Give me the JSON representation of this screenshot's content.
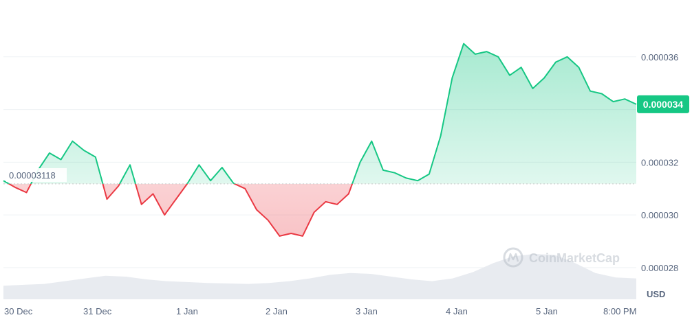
{
  "watermark": {
    "brand": "CoinMarketCap",
    "icon": "coinmarketcap-logo"
  },
  "currency_label": "USD",
  "colors": {
    "up": "#16c784",
    "down": "#ea3943",
    "current_price_bg": "#16c784",
    "baseline": "#c7c7c7",
    "grid": "#eff2f5",
    "axis_text": "#58667e",
    "volume": "#e8ebf0"
  },
  "chart_data": {
    "type": "area",
    "currency": "USD",
    "baseline_label": "0.00003118",
    "baseline_value": 3.118e-05,
    "current_price_label": "0.000034",
    "current_price_value": 3.42e-05,
    "ylim": [
      2.68e-05,
      3.8e-05
    ],
    "y_ticks": [
      {
        "value": 3.6e-05,
        "label": "0.000036"
      },
      {
        "value": 3.4e-05,
        "label": "0.000034"
      },
      {
        "value": 3.2e-05,
        "label": "0.000032"
      },
      {
        "value": 3e-05,
        "label": "0.000030"
      },
      {
        "value": 2.8e-05,
        "label": "0.000028"
      }
    ],
    "x_ticks": [
      "30 Dec",
      "31 Dec",
      "1 Jan",
      "2 Jan",
      "3 Jan",
      "4 Jan",
      "5 Jan",
      "8:00 PM"
    ],
    "price_series": [
      [
        "30 Dec 00:00",
        3.13e-05
      ],
      [
        "30 Dec 03:00",
        3.105e-05
      ],
      [
        "30 Dec 06:00",
        3.085e-05
      ],
      [
        "30 Dec 09:00",
        3.17e-05
      ],
      [
        "30 Dec 12:00",
        3.235e-05
      ],
      [
        "30 Dec 15:00",
        3.21e-05
      ],
      [
        "30 Dec 18:00",
        3.28e-05
      ],
      [
        "30 Dec 21:00",
        3.245e-05
      ],
      [
        "31 Dec 00:00",
        3.22e-05
      ],
      [
        "31 Dec 03:00",
        3.06e-05
      ],
      [
        "31 Dec 06:00",
        3.11e-05
      ],
      [
        "31 Dec 09:00",
        3.19e-05
      ],
      [
        "31 Dec 12:00",
        3.04e-05
      ],
      [
        "31 Dec 15:00",
        3.08e-05
      ],
      [
        "31 Dec 18:00",
        3e-05
      ],
      [
        "31 Dec 21:00",
        3.06e-05
      ],
      [
        "1 Jan 00:00",
        3.12e-05
      ],
      [
        "1 Jan 03:00",
        3.19e-05
      ],
      [
        "1 Jan 06:00",
        3.13e-05
      ],
      [
        "1 Jan 09:00",
        3.18e-05
      ],
      [
        "1 Jan 12:00",
        3.12e-05
      ],
      [
        "1 Jan 15:00",
        3.1e-05
      ],
      [
        "1 Jan 18:00",
        3.02e-05
      ],
      [
        "1 Jan 21:00",
        2.98e-05
      ],
      [
        "2 Jan 00:00",
        2.92e-05
      ],
      [
        "2 Jan 03:00",
        2.93e-05
      ],
      [
        "2 Jan 06:00",
        2.92e-05
      ],
      [
        "2 Jan 09:00",
        3.01e-05
      ],
      [
        "2 Jan 12:00",
        3.05e-05
      ],
      [
        "2 Jan 15:00",
        3.04e-05
      ],
      [
        "2 Jan 18:00",
        3.08e-05
      ],
      [
        "2 Jan 21:00",
        3.2e-05
      ],
      [
        "3 Jan 00:00",
        3.28e-05
      ],
      [
        "3 Jan 03:00",
        3.17e-05
      ],
      [
        "3 Jan 06:00",
        3.16e-05
      ],
      [
        "3 Jan 09:00",
        3.14e-05
      ],
      [
        "3 Jan 12:00",
        3.13e-05
      ],
      [
        "3 Jan 15:00",
        3.155e-05
      ],
      [
        "3 Jan 18:00",
        3.3e-05
      ],
      [
        "3 Jan 21:00",
        3.52e-05
      ],
      [
        "4 Jan 00:00",
        3.65e-05
      ],
      [
        "4 Jan 03:00",
        3.61e-05
      ],
      [
        "4 Jan 06:00",
        3.62e-05
      ],
      [
        "4 Jan 09:00",
        3.6e-05
      ],
      [
        "4 Jan 12:00",
        3.53e-05
      ],
      [
        "4 Jan 15:00",
        3.56e-05
      ],
      [
        "4 Jan 18:00",
        3.48e-05
      ],
      [
        "4 Jan 21:00",
        3.52e-05
      ],
      [
        "5 Jan 00:00",
        3.58e-05
      ],
      [
        "5 Jan 03:00",
        3.6e-05
      ],
      [
        "5 Jan 06:00",
        3.56e-05
      ],
      [
        "5 Jan 09:00",
        3.47e-05
      ],
      [
        "5 Jan 12:00",
        3.46e-05
      ],
      [
        "5 Jan 15:00",
        3.43e-05
      ],
      [
        "5 Jan 18:00",
        3.44e-05
      ],
      [
        "5 Jan 21:00",
        3.42e-05
      ]
    ],
    "volume_series": [
      0.3,
      0.32,
      0.34,
      0.4,
      0.46,
      0.52,
      0.5,
      0.44,
      0.4,
      0.38,
      0.36,
      0.35,
      0.34,
      0.36,
      0.4,
      0.46,
      0.54,
      0.58,
      0.56,
      0.5,
      0.44,
      0.4,
      0.46,
      0.6,
      0.8,
      0.95,
      1.0,
      0.98,
      0.8,
      0.58,
      0.48,
      0.46
    ],
    "grid": true
  }
}
